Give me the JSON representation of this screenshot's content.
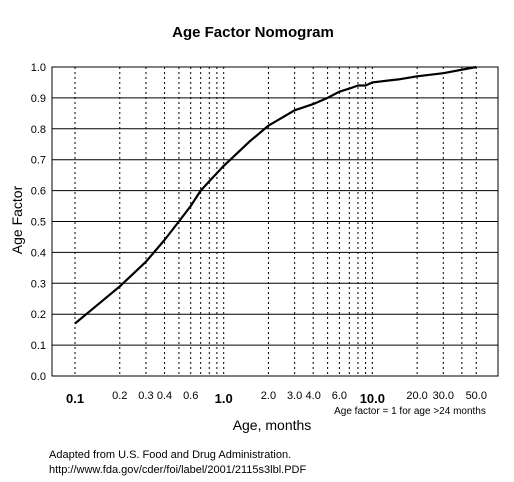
{
  "chart_data": {
    "type": "line",
    "title": "Age Factor Nomogram",
    "xlabel": "Age, months",
    "ylabel": "Age Factor",
    "x_scale": "log",
    "xlim": [
      0.07,
      70
    ],
    "ylim": [
      0,
      1
    ],
    "y_ticks": [
      "0.0",
      "0.1",
      "0.2",
      "0.3",
      "0.4",
      "0.5",
      "0.6",
      "0.7",
      "0.8",
      "0.9",
      "1.0"
    ],
    "x_tick_labels": [
      {
        "value": 0.1,
        "label": "0.1",
        "major": true
      },
      {
        "value": 0.2,
        "label": "0.2",
        "major": false
      },
      {
        "value": 0.3,
        "label": "0.3",
        "major": false
      },
      {
        "value": 0.4,
        "label": "0.4",
        "major": false
      },
      {
        "value": 0.6,
        "label": "0.6",
        "major": false
      },
      {
        "value": 1,
        "label": "1.0",
        "major": true
      },
      {
        "value": 2,
        "label": "2.0",
        "major": false
      },
      {
        "value": 3,
        "label": "3.0",
        "major": false
      },
      {
        "value": 4,
        "label": "4.0",
        "major": false
      },
      {
        "value": 6,
        "label": "6.0",
        "major": false
      },
      {
        "value": 10,
        "label": "10.0",
        "major": true
      },
      {
        "value": 20,
        "label": "20.0",
        "major": false
      },
      {
        "value": 30,
        "label": "30.0",
        "major": false
      },
      {
        "value": 50,
        "label": "50.0",
        "major": false
      }
    ],
    "x_gridlines": [
      0.1,
      0.2,
      0.3,
      0.4,
      0.5,
      0.6,
      0.7,
      0.8,
      0.9,
      1,
      2,
      3,
      4,
      5,
      6,
      7,
      8,
      9,
      10,
      20,
      30,
      40,
      50
    ],
    "grid": true,
    "series": [
      {
        "x": [
          0.1,
          0.15,
          0.2,
          0.3,
          0.4,
          0.5,
          0.6,
          0.7,
          0.8,
          1.0,
          1.5,
          2.0,
          3.0,
          4.0,
          5.0,
          6.0,
          7.0,
          8.0,
          9.0,
          10.0,
          15.0,
          20.0,
          30.0,
          50.0
        ],
        "y": [
          0.17,
          0.24,
          0.29,
          0.37,
          0.44,
          0.5,
          0.55,
          0.6,
          0.63,
          0.68,
          0.76,
          0.81,
          0.86,
          0.88,
          0.9,
          0.92,
          0.93,
          0.94,
          0.94,
          0.95,
          0.96,
          0.97,
          0.98,
          1.0
        ]
      }
    ],
    "annotation": "Age factor = 1 for age >24 months"
  },
  "caption": {
    "line1": "Adapted from U.S. Food and Drug Administration.",
    "line2": "http://www.fda.gov/cder/foi/label/2001/2115s3lbl.PDF"
  }
}
